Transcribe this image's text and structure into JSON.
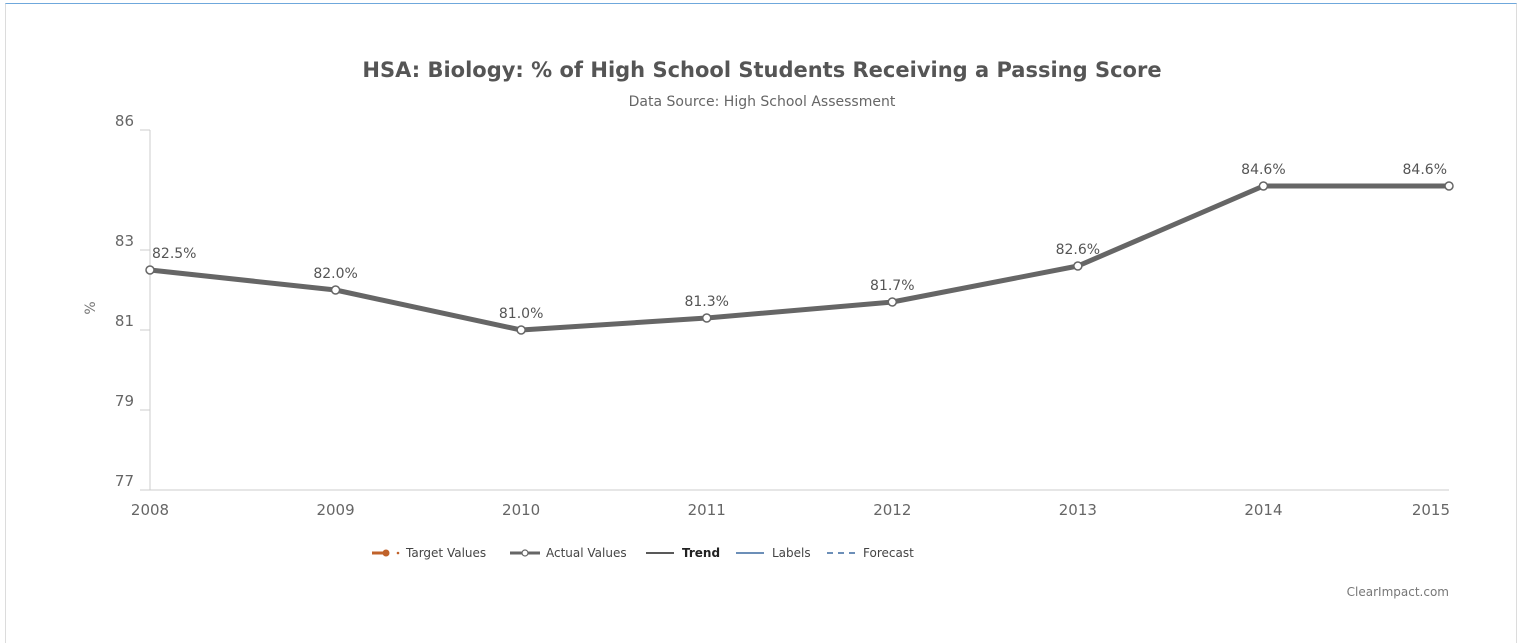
{
  "chart_data": {
    "type": "line",
    "title": "HSA: Biology: % of High School Students Receiving a Passing Score",
    "subtitle": "Data Source: High School Assessment",
    "ylabel": "%",
    "xlabel": "",
    "categories": [
      "2008",
      "2009",
      "2010",
      "2011",
      "2012",
      "2013",
      "2014",
      "2015"
    ],
    "series": [
      {
        "name": "Actual Values",
        "values": [
          82.5,
          82.0,
          81.0,
          81.3,
          81.7,
          82.6,
          84.6,
          84.6
        ],
        "labels": [
          "82.5%",
          "82.0%",
          "81.0%",
          "81.3%",
          "81.7%",
          "82.6%",
          "84.6%",
          "84.6%"
        ],
        "color": "#666666"
      }
    ],
    "yticks": [
      77,
      79,
      81,
      83,
      86
    ],
    "ylim": [
      77,
      86
    ],
    "grid": false,
    "legend_position": "bottom",
    "legend": [
      {
        "label": "Target Values",
        "style": "target",
        "color": "#c0622a",
        "bold": false
      },
      {
        "label": "Actual Values",
        "style": "actual",
        "color": "#666666",
        "bold": false
      },
      {
        "label": "Trend",
        "style": "solid",
        "color": "#222222",
        "bold": true
      },
      {
        "label": "Labels",
        "style": "solid",
        "color": "#3b6aa0",
        "bold": false
      },
      {
        "label": "Forecast",
        "style": "dashed",
        "color": "#3b6aa0",
        "bold": false
      }
    ],
    "credit": "ClearImpact.com"
  }
}
